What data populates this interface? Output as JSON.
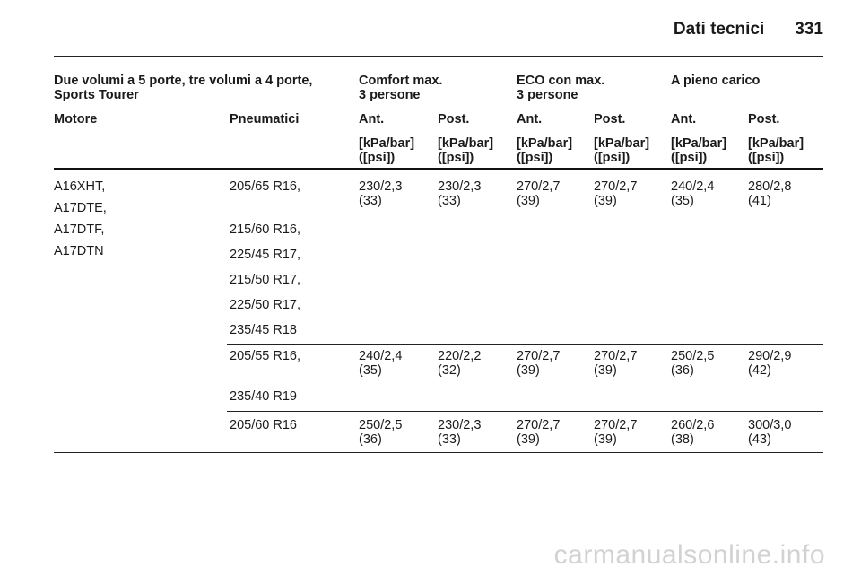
{
  "page_header": {
    "section_title": "Dati tecnici",
    "page_number": "331"
  },
  "table": {
    "group_headers": {
      "body_types": [
        "Due volumi a 5 porte, tre volumi a 4 porte,",
        "Sports Tourer"
      ],
      "comfort": [
        "Comfort max.",
        "3 persone"
      ],
      "eco": [
        "ECO con max.",
        "3 persone"
      ],
      "full_load": "A pieno carico"
    },
    "column_headers": {
      "engine": "Motore",
      "tyres": "Pneumatici",
      "comfort_front": "Ant.",
      "comfort_rear": "Post.",
      "eco_front": "Ant.",
      "eco_rear": "Post.",
      "full_front": "Ant.",
      "full_rear": "Post."
    },
    "unit_line1": "[kPa/bar]",
    "unit_line2": "([psi])",
    "engines": [
      "A16XHT,",
      "A17DTE,",
      "A17DTF,",
      "A17DTN"
    ],
    "groups": [
      {
        "tyres": [
          "205/65 R16,",
          "215/60 R16,",
          "225/45 R17,",
          "215/50 R17,",
          "225/50 R17,",
          "235/45 R18"
        ],
        "values": [
          [
            "230/2,3",
            "(33)"
          ],
          [
            "230/2,3",
            "(33)"
          ],
          [
            "270/2,7",
            "(39)"
          ],
          [
            "270/2,7",
            "(39)"
          ],
          [
            "240/2,4",
            "(35)"
          ],
          [
            "280/2,8",
            "(41)"
          ]
        ]
      },
      {
        "tyres": [
          "205/55 R16,",
          "235/40 R19"
        ],
        "values": [
          [
            "240/2,4",
            "(35)"
          ],
          [
            "220/2,2",
            "(32)"
          ],
          [
            "270/2,7",
            "(39)"
          ],
          [
            "270/2,7",
            "(39)"
          ],
          [
            "250/2,5",
            "(36)"
          ],
          [
            "290/2,9",
            "(42)"
          ]
        ]
      },
      {
        "tyres": [
          "205/60 R16"
        ],
        "values": [
          [
            "250/2,5",
            "(36)"
          ],
          [
            "230/2,3",
            "(33)"
          ],
          [
            "270/2,7",
            "(39)"
          ],
          [
            "270/2,7",
            "(39)"
          ],
          [
            "260/2,6",
            "(38)"
          ],
          [
            "300/3,0",
            "(43)"
          ]
        ]
      }
    ]
  },
  "watermark": "carmanualsonline.info"
}
